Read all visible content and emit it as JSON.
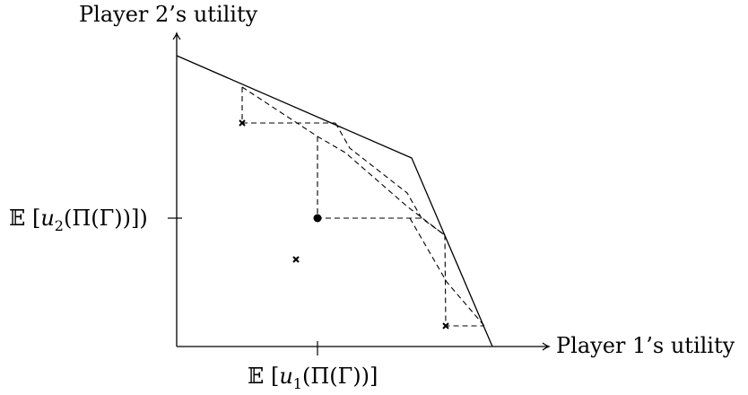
{
  "axes": {
    "y_label": "Player 2’s utility",
    "x_label": "Player 1’s utility"
  },
  "ticks": {
    "y_tick": {
      "bb": "𝔼",
      "open_bracket": "[",
      "var": "u",
      "sub": "2",
      "rest": "(Π(Γ))]",
      "close": ")"
    },
    "x_tick": {
      "bb": "𝔼",
      "open_bracket": "[",
      "var": "u",
      "sub": "1",
      "rest": "(Π(Γ))]"
    }
  },
  "colors": {
    "ink": "#000000"
  },
  "markers": {
    "cross_icon": "cross-marker-icon",
    "dot_icon": "filled-dot-icon"
  }
}
